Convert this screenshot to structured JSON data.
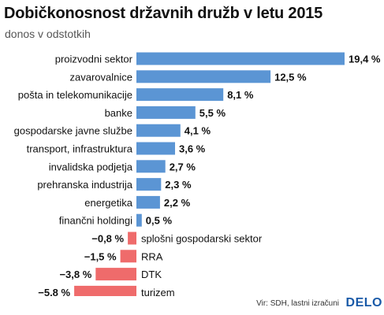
{
  "title": "Dobičkonosnost državnih družb v letu 2015",
  "subtitle": "donos v odstotkih",
  "source": "Vir: SDH, lastni izračuni",
  "brand": "DELO",
  "colors": {
    "positive": "#5b95d4",
    "negative": "#ef6b6b",
    "brand": "#1a5aa8"
  },
  "chart_data": {
    "type": "bar",
    "orientation": "horizontal",
    "categories": [
      "proizvodni sektor",
      "zavarovalnice",
      "pošta in telekomunikacije",
      "banke",
      "gospodarske javne službe",
      "transport, infrastruktura",
      "invalidska podjetja",
      "prehranska industrija",
      "energetika",
      "finančni holdingi",
      "splošni gospodarski sektor",
      "RRA",
      "DTK",
      "turizem"
    ],
    "values": [
      19.4,
      12.5,
      8.1,
      5.5,
      4.1,
      3.6,
      2.7,
      2.3,
      2.2,
      0.5,
      -0.8,
      -1.5,
      -3.8,
      -5.8
    ],
    "value_labels": [
      "19,4 %",
      "12,5 %",
      "8,1 %",
      "5,5 %",
      "4,1 %",
      "3,6 %",
      "2,7 %",
      "2,3 %",
      "2,2 %",
      "0,5 %",
      "−0,8 %",
      "−1,5 %",
      "−3,8 %",
      "−5,8 %"
    ],
    "xlim": [
      -5.8,
      19.4
    ],
    "grid": false,
    "legend": "none"
  }
}
